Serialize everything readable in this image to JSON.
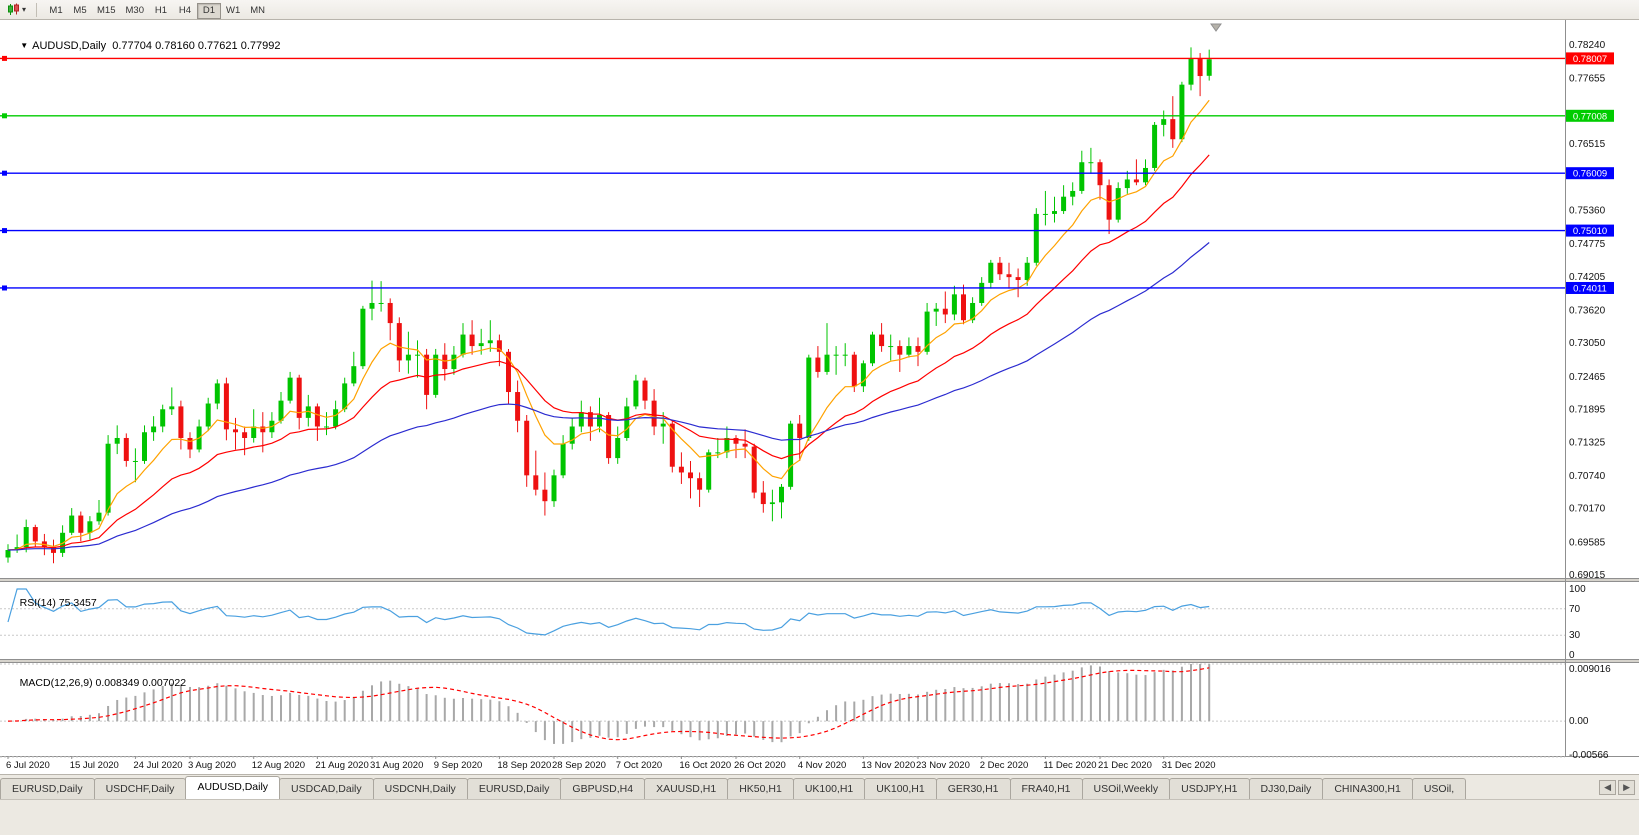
{
  "toolbar": {
    "timeframes": [
      "M1",
      "M5",
      "M15",
      "M30",
      "H1",
      "H4",
      "D1",
      "W1",
      "MN"
    ],
    "active_timeframe": "D1"
  },
  "icons": {
    "collapse_triangle": "▼",
    "dropdown_caret": "▾",
    "tab_scroll_left": "◀",
    "tab_scroll_right": "▶"
  },
  "chart": {
    "symbol_label": "AUDUSD,Daily",
    "ohlc_label": "0.77704 0.78160 0.77621 0.77992",
    "price_axis_ticks": [
      "0.78240",
      "0.77655",
      "0.76515",
      "0.75360",
      "0.74775",
      "0.74205",
      "0.73620",
      "0.73050",
      "0.72465",
      "0.71895",
      "0.71325",
      "0.70740",
      "0.70170",
      "0.69585",
      "0.69015"
    ],
    "hlines": [
      {
        "value": 0.78007,
        "label": "0.78007",
        "color": "#ff0000"
      },
      {
        "value": 0.77008,
        "label": "0.77008",
        "color": "#00cc00"
      },
      {
        "value": 0.76009,
        "label": "0.76009",
        "color": "#0000ff"
      },
      {
        "value": 0.7501,
        "label": "0.75010",
        "color": "#0000ff"
      },
      {
        "value": 0.74011,
        "label": "0.74011",
        "color": "#0000ff"
      }
    ],
    "rsi": {
      "label": "RSI(14)",
      "value_label": "75.3457",
      "axis_labels": [
        "100",
        "70",
        "30",
        "0"
      ],
      "levels": [
        70,
        30
      ]
    },
    "macd": {
      "label": "MACD(12,26,9)",
      "values_label": "0.008349 0.007022",
      "axis_max_label": "0.009016",
      "axis_zero_label": "0.00",
      "axis_min_label": "-0.00566"
    },
    "date_ticks": [
      {
        "index": 0,
        "label": "6 Jul 2020"
      },
      {
        "index": 7,
        "label": "15 Jul 2020"
      },
      {
        "index": 14,
        "label": "24 Jul 2020"
      },
      {
        "index": 20,
        "label": "3 Aug 2020"
      },
      {
        "index": 27,
        "label": "12 Aug 2020"
      },
      {
        "index": 34,
        "label": "21 Aug 2020"
      },
      {
        "index": 40,
        "label": "31 Aug 2020"
      },
      {
        "index": 47,
        "label": "9 Sep 2020"
      },
      {
        "index": 54,
        "label": "18 Sep 2020"
      },
      {
        "index": 60,
        "label": "28 Sep 2020"
      },
      {
        "index": 67,
        "label": "7 Oct 2020"
      },
      {
        "index": 74,
        "label": "16 Oct 2020"
      },
      {
        "index": 80,
        "label": "26 Oct 2020"
      },
      {
        "index": 87,
        "label": "4 Nov 2020"
      },
      {
        "index": 94,
        "label": "13 Nov 2020"
      },
      {
        "index": 100,
        "label": "23 Nov 2020"
      },
      {
        "index": 107,
        "label": "2 Dec 2020"
      },
      {
        "index": 114,
        "label": "11 Dec 2020"
      },
      {
        "index": 120,
        "label": "21 Dec 2020"
      },
      {
        "index": 127,
        "label": "31 Dec 2020"
      }
    ]
  },
  "chart_data": {
    "type": "candlestick",
    "symbol": "AUDUSD",
    "timeframe": "Daily",
    "title": "AUDUSD,Daily",
    "current_bar": {
      "open": 0.77704,
      "high": 0.7816,
      "low": 0.77621,
      "close": 0.77992
    },
    "price_range": {
      "min": 0.68963,
      "max": 0.78571
    },
    "x_range": {
      "start": "6 Jul 2020",
      "end": "8 Jan 2021"
    },
    "overlays": [
      {
        "name": "ma-fast",
        "type": "ema",
        "period": 8,
        "color": "#ffa200"
      },
      {
        "name": "ma-mid",
        "type": "ema",
        "period": 20,
        "color": "#ff0000"
      },
      {
        "name": "ma-slow",
        "type": "ema",
        "period": 50,
        "color": "#2b2bd0"
      }
    ],
    "indicators": {
      "rsi": {
        "period": 14,
        "current": 75.3457,
        "range": [
          0,
          100
        ],
        "levels": [
          70,
          30
        ]
      },
      "macd": {
        "fast": 12,
        "slow": 26,
        "signal": 9,
        "current_main": 0.008349,
        "current_signal": 0.007022,
        "range": [
          -0.00566,
          0.009016
        ]
      }
    },
    "ohlc": [
      [
        0.6932,
        0.6955,
        0.6923,
        0.6945
      ],
      [
        0.6945,
        0.6972,
        0.694,
        0.695
      ],
      [
        0.695,
        0.6998,
        0.6941,
        0.6985
      ],
      [
        0.6985,
        0.6989,
        0.6951,
        0.696
      ],
      [
        0.696,
        0.6973,
        0.6936,
        0.695
      ],
      [
        0.695,
        0.6963,
        0.6922,
        0.694
      ],
      [
        0.694,
        0.6988,
        0.6933,
        0.6975
      ],
      [
        0.6975,
        0.7018,
        0.6971,
        0.7005
      ],
      [
        0.7005,
        0.7012,
        0.696,
        0.6975
      ],
      [
        0.6975,
        0.7004,
        0.6963,
        0.6995
      ],
      [
        0.6995,
        0.7032,
        0.6989,
        0.701
      ],
      [
        0.701,
        0.7145,
        0.7005,
        0.713
      ],
      [
        0.713,
        0.7162,
        0.7112,
        0.714
      ],
      [
        0.714,
        0.7148,
        0.709,
        0.71
      ],
      [
        0.71,
        0.7122,
        0.7063,
        0.71
      ],
      [
        0.71,
        0.7162,
        0.7095,
        0.715
      ],
      [
        0.715,
        0.7178,
        0.7135,
        0.716
      ],
      [
        0.716,
        0.7198,
        0.715,
        0.719
      ],
      [
        0.719,
        0.7228,
        0.718,
        0.7195
      ],
      [
        0.7195,
        0.7205,
        0.712,
        0.714
      ],
      [
        0.714,
        0.715,
        0.7105,
        0.712
      ],
      [
        0.712,
        0.7172,
        0.7115,
        0.716
      ],
      [
        0.716,
        0.721,
        0.7152,
        0.72
      ],
      [
        0.72,
        0.7242,
        0.719,
        0.7235
      ],
      [
        0.7235,
        0.7245,
        0.7136,
        0.7155
      ],
      [
        0.7155,
        0.7175,
        0.712,
        0.715
      ],
      [
        0.715,
        0.716,
        0.711,
        0.714
      ],
      [
        0.714,
        0.719,
        0.7132,
        0.716
      ],
      [
        0.716,
        0.7185,
        0.7115,
        0.715
      ],
      [
        0.715,
        0.7185,
        0.714,
        0.717
      ],
      [
        0.717,
        0.722,
        0.7165,
        0.7205
      ],
      [
        0.7205,
        0.7255,
        0.72,
        0.7245
      ],
      [
        0.7245,
        0.725,
        0.7155,
        0.7175
      ],
      [
        0.7175,
        0.7215,
        0.716,
        0.7195
      ],
      [
        0.7195,
        0.72,
        0.7135,
        0.716
      ],
      [
        0.716,
        0.7185,
        0.7145,
        0.716
      ],
      [
        0.716,
        0.7205,
        0.7155,
        0.719
      ],
      [
        0.719,
        0.7245,
        0.7185,
        0.7235
      ],
      [
        0.7235,
        0.729,
        0.723,
        0.7265
      ],
      [
        0.7265,
        0.737,
        0.726,
        0.7365
      ],
      [
        0.7365,
        0.7414,
        0.7345,
        0.7375
      ],
      [
        0.7375,
        0.7413,
        0.736,
        0.7375
      ],
      [
        0.7375,
        0.7383,
        0.731,
        0.734
      ],
      [
        0.734,
        0.735,
        0.7255,
        0.7275
      ],
      [
        0.7275,
        0.7325,
        0.7252,
        0.7285
      ],
      [
        0.7285,
        0.731,
        0.7245,
        0.7285
      ],
      [
        0.7285,
        0.7295,
        0.719,
        0.7215
      ],
      [
        0.7215,
        0.7295,
        0.721,
        0.7285
      ],
      [
        0.7285,
        0.7305,
        0.724,
        0.726
      ],
      [
        0.726,
        0.73,
        0.725,
        0.7285
      ],
      [
        0.7285,
        0.734,
        0.728,
        0.732
      ],
      [
        0.732,
        0.7345,
        0.7285,
        0.73
      ],
      [
        0.73,
        0.733,
        0.7285,
        0.7305
      ],
      [
        0.7305,
        0.7345,
        0.729,
        0.731
      ],
      [
        0.731,
        0.732,
        0.7265,
        0.729
      ],
      [
        0.729,
        0.7295,
        0.72,
        0.722
      ],
      [
        0.722,
        0.724,
        0.715,
        0.717
      ],
      [
        0.717,
        0.718,
        0.7055,
        0.7075
      ],
      [
        0.7075,
        0.7118,
        0.704,
        0.705
      ],
      [
        0.705,
        0.708,
        0.7005,
        0.703
      ],
      [
        0.703,
        0.7085,
        0.702,
        0.7075
      ],
      [
        0.7075,
        0.7145,
        0.707,
        0.713
      ],
      [
        0.713,
        0.7175,
        0.712,
        0.716
      ],
      [
        0.716,
        0.7205,
        0.715,
        0.7185
      ],
      [
        0.7185,
        0.7195,
        0.7135,
        0.716
      ],
      [
        0.716,
        0.721,
        0.715,
        0.718
      ],
      [
        0.718,
        0.7185,
        0.7095,
        0.7105
      ],
      [
        0.7105,
        0.716,
        0.7095,
        0.714
      ],
      [
        0.714,
        0.721,
        0.7135,
        0.7195
      ],
      [
        0.7195,
        0.725,
        0.719,
        0.724
      ],
      [
        0.724,
        0.7245,
        0.719,
        0.7205
      ],
      [
        0.7205,
        0.7225,
        0.7145,
        0.716
      ],
      [
        0.716,
        0.7185,
        0.713,
        0.7165
      ],
      [
        0.7165,
        0.717,
        0.708,
        0.709
      ],
      [
        0.709,
        0.7115,
        0.706,
        0.708
      ],
      [
        0.708,
        0.71,
        0.7035,
        0.707
      ],
      [
        0.707,
        0.708,
        0.702,
        0.705
      ],
      [
        0.705,
        0.712,
        0.7045,
        0.7115
      ],
      [
        0.7115,
        0.714,
        0.7105,
        0.7115
      ],
      [
        0.7115,
        0.716,
        0.7105,
        0.714
      ],
      [
        0.714,
        0.7145,
        0.7105,
        0.713
      ],
      [
        0.713,
        0.7155,
        0.7105,
        0.7125
      ],
      [
        0.7125,
        0.713,
        0.7035,
        0.7045
      ],
      [
        0.7045,
        0.7065,
        0.701,
        0.7025
      ],
      [
        0.7025,
        0.705,
        0.6995,
        0.7028
      ],
      [
        0.7028,
        0.706,
        0.7,
        0.7055
      ],
      [
        0.7055,
        0.717,
        0.705,
        0.7165
      ],
      [
        0.7165,
        0.718,
        0.71,
        0.714
      ],
      [
        0.714,
        0.7285,
        0.7135,
        0.728
      ],
      [
        0.728,
        0.73,
        0.7245,
        0.7255
      ],
      [
        0.7255,
        0.734,
        0.725,
        0.7285
      ],
      [
        0.7285,
        0.73,
        0.725,
        0.7285
      ],
      [
        0.7285,
        0.7305,
        0.7265,
        0.7285
      ],
      [
        0.7285,
        0.729,
        0.722,
        0.723
      ],
      [
        0.723,
        0.7275,
        0.722,
        0.727
      ],
      [
        0.727,
        0.7325,
        0.7265,
        0.732
      ],
      [
        0.732,
        0.734,
        0.729,
        0.73
      ],
      [
        0.73,
        0.732,
        0.7275,
        0.73
      ],
      [
        0.73,
        0.731,
        0.7255,
        0.7285
      ],
      [
        0.7285,
        0.7315,
        0.728,
        0.73
      ],
      [
        0.73,
        0.7315,
        0.7265,
        0.729
      ],
      [
        0.729,
        0.7375,
        0.7285,
        0.736
      ],
      [
        0.736,
        0.7375,
        0.7335,
        0.7365
      ],
      [
        0.7365,
        0.7395,
        0.734,
        0.7355
      ],
      [
        0.7355,
        0.7405,
        0.7345,
        0.739
      ],
      [
        0.739,
        0.7407,
        0.7338,
        0.7345
      ],
      [
        0.7345,
        0.7385,
        0.734,
        0.7375
      ],
      [
        0.7375,
        0.742,
        0.737,
        0.741
      ],
      [
        0.741,
        0.745,
        0.74,
        0.7445
      ],
      [
        0.7445,
        0.7455,
        0.7415,
        0.7425
      ],
      [
        0.7425,
        0.7445,
        0.74,
        0.742
      ],
      [
        0.742,
        0.7435,
        0.7385,
        0.7415
      ],
      [
        0.7415,
        0.7455,
        0.7405,
        0.7445
      ],
      [
        0.7445,
        0.754,
        0.744,
        0.753
      ],
      [
        0.753,
        0.757,
        0.751,
        0.753
      ],
      [
        0.753,
        0.756,
        0.7515,
        0.7535
      ],
      [
        0.7535,
        0.758,
        0.753,
        0.756
      ],
      [
        0.756,
        0.7585,
        0.7545,
        0.757
      ],
      [
        0.757,
        0.764,
        0.7565,
        0.762
      ],
      [
        0.762,
        0.7645,
        0.76,
        0.762
      ],
      [
        0.762,
        0.7625,
        0.7555,
        0.758
      ],
      [
        0.758,
        0.759,
        0.7495,
        0.752
      ],
      [
        0.752,
        0.7585,
        0.7515,
        0.7575
      ],
      [
        0.7575,
        0.7605,
        0.7565,
        0.759
      ],
      [
        0.759,
        0.7625,
        0.758,
        0.7585
      ],
      [
        0.7585,
        0.7625,
        0.758,
        0.761
      ],
      [
        0.761,
        0.769,
        0.7605,
        0.7685
      ],
      [
        0.7685,
        0.771,
        0.7665,
        0.7695
      ],
      [
        0.7695,
        0.7735,
        0.7645,
        0.766
      ],
      [
        0.766,
        0.776,
        0.7655,
        0.7755
      ],
      [
        0.7755,
        0.782,
        0.7745,
        0.78
      ],
      [
        0.78,
        0.781,
        0.7735,
        0.777
      ],
      [
        0.77704,
        0.7816,
        0.77621,
        0.77992
      ]
    ]
  },
  "colors": {
    "bull": "#00c400",
    "bear": "#ee1111",
    "ma_fast": "#ffa200",
    "ma_mid": "#ff0000",
    "ma_slow": "#2b2bd0",
    "rsi_line": "#4aa0e0",
    "macd_hist": "#a8a8a8",
    "macd_signal": "#ff0000",
    "grid": "#c8c8c8",
    "axis_text": "#111111",
    "separator": "#8f8f8f"
  },
  "tabs": {
    "items": [
      "EURUSD,Daily",
      "USDCHF,Daily",
      "AUDUSD,Daily",
      "USDCAD,Daily",
      "USDCNH,Daily",
      "EURUSD,Daily",
      "GBPUSD,H4",
      "XAUUSD,H1",
      "HK50,H1",
      "UK100,H1",
      "UK100,H1",
      "GER30,H1",
      "FRA40,H1",
      "USOil,Weekly",
      "USDJPY,H1",
      "DJ30,Daily",
      "CHINA300,H1",
      "USOil,"
    ],
    "active_index": 2
  }
}
